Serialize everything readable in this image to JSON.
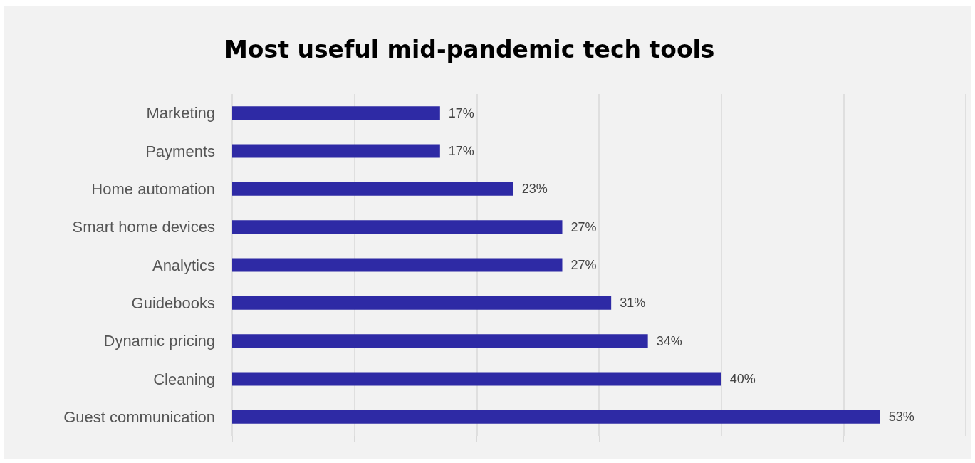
{
  "chart_data": {
    "type": "bar",
    "orientation": "horizontal",
    "title": "Most useful mid-pandemic tech tools",
    "categories": [
      "Marketing",
      "Payments",
      "Home automation",
      "Smart home devices",
      "Analytics",
      "Guidebooks",
      "Dynamic pricing",
      "Cleaning",
      "Guest communication"
    ],
    "values": [
      17,
      17,
      23,
      27,
      27,
      31,
      34,
      40,
      53
    ],
    "value_labels": [
      "17%",
      "17%",
      "23%",
      "27%",
      "27%",
      "31%",
      "34%",
      "40%",
      "53%"
    ],
    "color": "#2e2aa5",
    "xlim": [
      0,
      60
    ],
    "xticks": [
      {
        "value": 0,
        "label": null
      },
      {
        "value": 10,
        "label": null
      },
      {
        "value": 20,
        "label": null
      },
      {
        "value": 30,
        "label": null
      },
      {
        "value": 40,
        "label": null
      },
      {
        "value": 50,
        "label": null
      },
      {
        "value": 60,
        "label": null
      }
    ],
    "grid": "x",
    "tick_labels": "y"
  }
}
